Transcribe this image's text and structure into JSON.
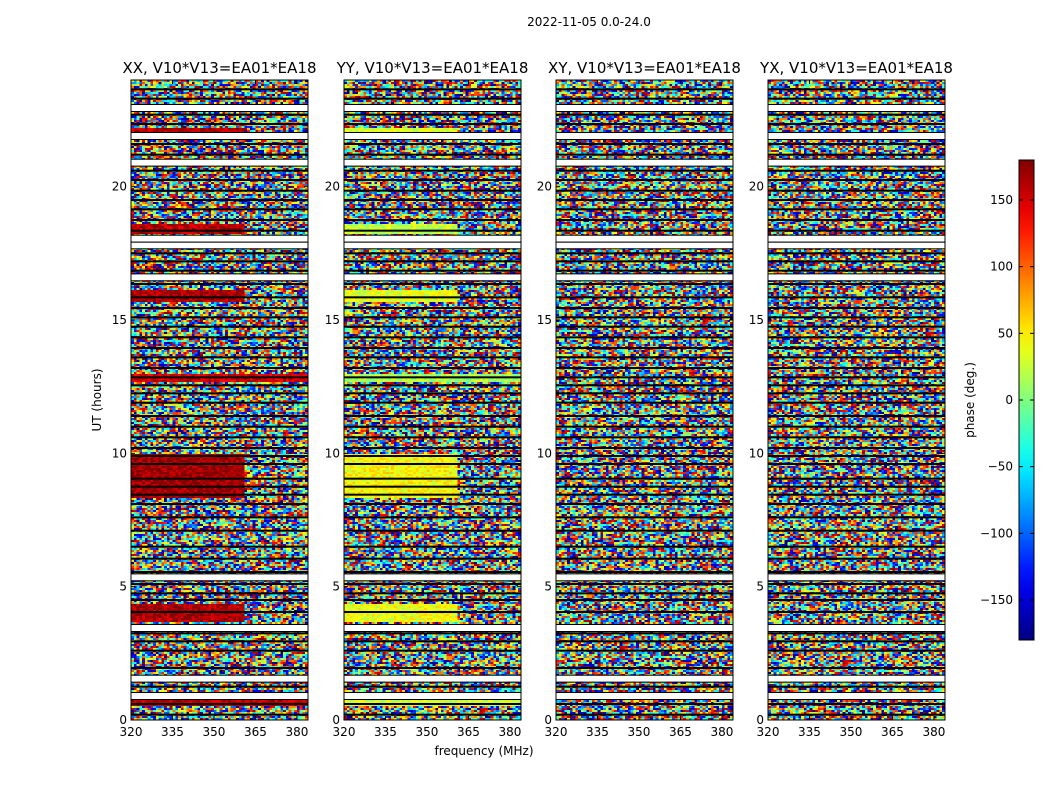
{
  "figure": {
    "suptitle": "2022-11-05 0.0-24.0",
    "xlabel": "frequency (MHz)",
    "ylabel": "UT (hours)",
    "colorbar_label": "phase (deg.)",
    "colorbar_ticks": [
      "150",
      "100",
      "50",
      "0",
      "−50",
      "−100",
      "−150"
    ],
    "colorbar_tick_values": [
      150,
      100,
      50,
      0,
      -50,
      -100,
      -150
    ],
    "colorbar_range": [
      -180,
      180
    ],
    "colormap": "jet",
    "x_ticks": [
      "320",
      "335",
      "350",
      "365",
      "380"
    ],
    "y_ticks": [
      "0",
      "5",
      "10",
      "15",
      "20"
    ]
  },
  "chart_data": [
    {
      "type": "heatmap",
      "title": "XX, V10*V13=EA01*EA18",
      "x_tick_values": [
        320,
        335,
        350,
        365,
        380
      ],
      "y_tick_values": [
        0,
        5,
        10,
        15,
        20
      ],
      "xlim": [
        320,
        384
      ],
      "ylim": [
        0,
        24
      ],
      "xlabel": "",
      "ylabel": "UT (hours)",
      "value_range": [
        -180,
        180
      ],
      "bands": [
        {
          "t0": 0.55,
          "t1": 0.9,
          "f1": 384,
          "phase": 160
        },
        {
          "t0": 3.7,
          "t1": 4.35,
          "f1": 361,
          "phase": 165
        },
        {
          "t0": 8.3,
          "t1": 10.0,
          "f1": 361,
          "phase": 170
        },
        {
          "t0": 12.7,
          "t1": 13.0,
          "f1": 384,
          "phase": 150
        },
        {
          "t0": 15.7,
          "t1": 16.1,
          "f1": 361,
          "phase": 165
        },
        {
          "t0": 18.2,
          "t1": 18.6,
          "f1": 361,
          "phase": 160
        },
        {
          "t0": 21.9,
          "t1": 22.2,
          "f1": 361,
          "phase": 160
        }
      ]
    },
    {
      "type": "heatmap",
      "title": "YY, V10*V13=EA01*EA18",
      "x_tick_values": [
        320,
        335,
        350,
        365,
        380
      ],
      "y_tick_values": [
        0,
        5,
        10,
        15,
        20
      ],
      "xlim": [
        320,
        384
      ],
      "ylim": [
        0,
        24
      ],
      "xlabel": "frequency (MHz)",
      "ylabel": "",
      "value_range": [
        -180,
        180
      ],
      "bands": [
        {
          "t0": 0.55,
          "t1": 0.9,
          "f1": 384,
          "phase": 30
        },
        {
          "t0": 3.7,
          "t1": 4.35,
          "f1": 361,
          "phase": 40
        },
        {
          "t0": 8.3,
          "t1": 10.0,
          "f1": 361,
          "phase": 45
        },
        {
          "t0": 12.7,
          "t1": 13.0,
          "f1": 384,
          "phase": 15
        },
        {
          "t0": 15.7,
          "t1": 16.1,
          "f1": 361,
          "phase": 35
        },
        {
          "t0": 18.2,
          "t1": 18.6,
          "f1": 361,
          "phase": 25
        },
        {
          "t0": 21.9,
          "t1": 22.2,
          "f1": 361,
          "phase": 30
        }
      ]
    },
    {
      "type": "heatmap",
      "title": "XY, V10*V13=EA01*EA18",
      "x_tick_values": [
        320,
        335,
        350,
        365,
        380
      ],
      "y_tick_values": [
        0,
        5,
        10,
        15,
        20
      ],
      "xlim": [
        320,
        384
      ],
      "ylim": [
        0,
        24
      ],
      "xlabel": "",
      "ylabel": "",
      "value_range": [
        -180,
        180
      ],
      "bands": []
    },
    {
      "type": "heatmap",
      "title": "YX, V10*V13=EA01*EA18",
      "x_tick_values": [
        320,
        335,
        350,
        365,
        380
      ],
      "y_tick_values": [
        0,
        5,
        10,
        15,
        20
      ],
      "xlim": [
        320,
        384
      ],
      "ylim": [
        0,
        24
      ],
      "xlabel": "",
      "ylabel": "",
      "value_range": [
        -180,
        180
      ],
      "bands": []
    }
  ],
  "flag_rows_ut": [
    0.9,
    1.55,
    3.45,
    5.35,
    16.6,
    17.8,
    18.05,
    20.9,
    21.9,
    22.95
  ],
  "gap_lines_ut": [
    0.2,
    0.6,
    1.25,
    1.95,
    2.6,
    2.95,
    3.25,
    3.55,
    4.05,
    4.5,
    4.75,
    5.1,
    5.55,
    6.05,
    6.5,
    7.1,
    7.6,
    8.1,
    8.45,
    8.75,
    9.05,
    9.6,
    9.9,
    10.2,
    10.6,
    11.0,
    11.4,
    11.9,
    12.25,
    12.55,
    12.85,
    13.2,
    13.6,
    13.95,
    14.35,
    14.75,
    15.1,
    15.45,
    15.85,
    16.35,
    16.85,
    17.2,
    17.5,
    18.35,
    18.75,
    19.15,
    19.5,
    19.85,
    20.25,
    20.6,
    21.2,
    21.6,
    22.35,
    22.7,
    23.3,
    23.65
  ]
}
